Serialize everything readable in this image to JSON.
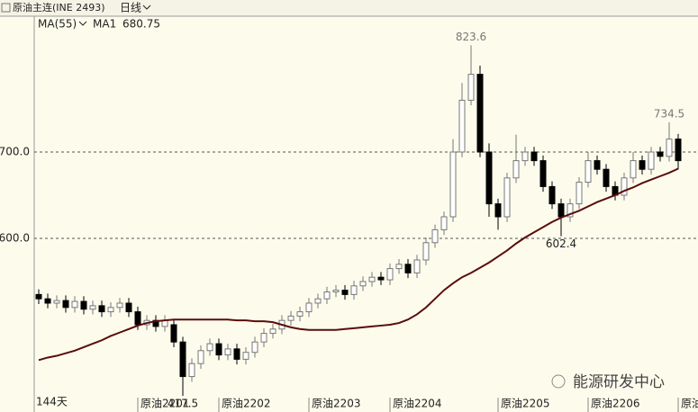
{
  "chart_data": {
    "type": "candlestick",
    "title": "原油主连(INE 2493)",
    "period": "日线",
    "indicator": "MA(55)",
    "range_label": "144天",
    "watermark": "能源研发中心",
    "up_color": "#ffffff",
    "down_color": "#000000",
    "ylim": [
      415.6,
      857.3
    ],
    "yticks": [
      {
        "value": 600,
        "label": "600.0"
      },
      {
        "value": 700,
        "label": "700.0"
      }
    ],
    "grid": true,
    "xticks": [
      {
        "value": 11,
        "label": "原油2201"
      },
      {
        "value": 20,
        "label": "原油2202"
      },
      {
        "value": 30,
        "label": "原油2203"
      },
      {
        "value": 39,
        "label": "原油2204"
      },
      {
        "value": 51,
        "label": "原油2205"
      },
      {
        "value": 61,
        "label": "原油2206"
      },
      {
        "value": 71,
        "label": "原油"
      }
    ],
    "candles": {
      "open": [
        535,
        530,
        525,
        528,
        520,
        527,
        518,
        522,
        515,
        520,
        525,
        515,
        500,
        505,
        498,
        500,
        480,
        440,
        455,
        470,
        478,
        465,
        472,
        460,
        468,
        480,
        490,
        495,
        505,
        510,
        515,
        525,
        530,
        538,
        540,
        535,
        545,
        550,
        555,
        552,
        565,
        570,
        560,
        575,
        595,
        610,
        625,
        700,
        760,
        790,
        700,
        640,
        625,
        670,
        690,
        700,
        690,
        660,
        640,
        625,
        640,
        665,
        690,
        680,
        660,
        650,
        670,
        690,
        680,
        700,
        695,
        715
      ],
      "high": [
        541,
        536,
        534,
        534,
        533,
        533,
        528,
        528,
        526,
        531,
        531,
        521,
        511,
        511,
        511,
        506,
        486,
        461,
        476,
        484,
        484,
        478,
        478,
        474,
        486,
        496,
        501,
        511,
        516,
        521,
        531,
        536,
        544,
        546,
        546,
        551,
        556,
        561,
        561,
        571,
        576,
        576,
        581,
        601,
        616,
        631,
        715,
        780,
        823.6,
        800,
        710,
        646,
        676,
        720,
        706,
        706,
        696,
        666,
        646,
        646,
        671,
        700,
        696,
        686,
        666,
        676,
        700,
        696,
        706,
        706,
        734.5,
        721
      ],
      "low": [
        524,
        519,
        519,
        514,
        514,
        512,
        512,
        509,
        509,
        514,
        509,
        494,
        494,
        492,
        492,
        474,
        417.5,
        434,
        449,
        464,
        459,
        459,
        454,
        454,
        462,
        474,
        484,
        489,
        499,
        504,
        509,
        519,
        524,
        532,
        529,
        529,
        539,
        544,
        546,
        546,
        559,
        554,
        554,
        569,
        589,
        604,
        619,
        694,
        754,
        694,
        625,
        610,
        619,
        664,
        684,
        684,
        654,
        634,
        602.4,
        619,
        634,
        659,
        674,
        654,
        644,
        644,
        664,
        674,
        674,
        689,
        689,
        680
      ],
      "close": [
        530,
        525,
        528,
        520,
        527,
        518,
        522,
        515,
        520,
        525,
        515,
        500,
        505,
        498,
        505,
        480,
        440,
        455,
        470,
        478,
        465,
        472,
        460,
        468,
        480,
        490,
        495,
        505,
        510,
        515,
        525,
        530,
        538,
        540,
        535,
        545,
        550,
        555,
        552,
        565,
        570,
        560,
        575,
        595,
        610,
        625,
        700,
        760,
        790,
        700,
        640,
        625,
        670,
        690,
        700,
        690,
        660,
        640,
        625,
        640,
        665,
        690,
        680,
        660,
        650,
        670,
        690,
        680,
        700,
        695,
        715,
        690
      ]
    },
    "series": [
      {
        "name": "MA1",
        "color": "#5a0c0c",
        "values": [
          459,
          462,
          464,
          467,
          470,
          474,
          478,
          482,
          487,
          491,
          495,
          499,
          502,
          504,
          505,
          506,
          506,
          506,
          506,
          506,
          506,
          506,
          505,
          505,
          504,
          504,
          503,
          500,
          497,
          495,
          494,
          494,
          494,
          494,
          495,
          496,
          497,
          498,
          499,
          500,
          502,
          506,
          512,
          520,
          530,
          540,
          548,
          555,
          560,
          566,
          572,
          579,
          586,
          594,
          601,
          607,
          613,
          619,
          624,
          628,
          632,
          637,
          642,
          646,
          650,
          655,
          659,
          664,
          668,
          672,
          676,
          680.75
        ]
      }
    ]
  }
}
